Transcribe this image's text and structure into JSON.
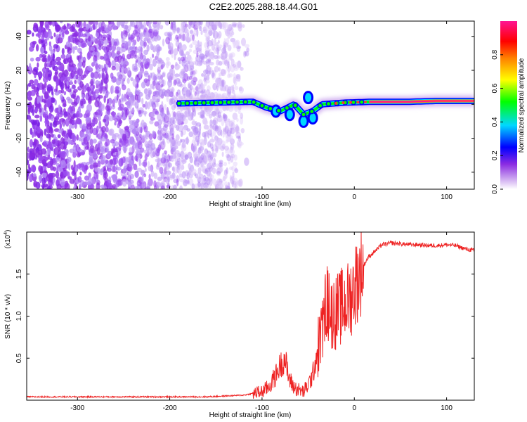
{
  "title": "C2E2.2025.288.18.44.G01",
  "chart_data": [
    {
      "type": "heatmap",
      "xlabel": "Height of straight line (km)",
      "ylabel": "Frequency (Hz)",
      "xlim": [
        -355,
        130
      ],
      "ylim": [
        -50,
        49
      ],
      "xticks": [
        -300,
        -200,
        -100,
        0,
        100
      ],
      "yticks": [
        -40,
        -20,
        0,
        20,
        40
      ],
      "noise_region_x": [
        -355,
        -130
      ],
      "signal_track": [
        {
          "x": -192,
          "f": 0.5
        },
        {
          "x": -150,
          "f": 1
        },
        {
          "x": -110,
          "f": 1.5
        },
        {
          "x": -95,
          "f": -2
        },
        {
          "x": -80,
          "f": -4
        },
        {
          "x": -65,
          "f": 0
        },
        {
          "x": -55,
          "f": -6
        },
        {
          "x": -45,
          "f": -4
        },
        {
          "x": -35,
          "f": 0
        },
        {
          "x": -10,
          "f": 1
        },
        {
          "x": 20,
          "f": 1.5
        },
        {
          "x": 60,
          "f": 1.5
        },
        {
          "x": 90,
          "f": 2
        },
        {
          "x": 130,
          "f": 2
        }
      ],
      "colorbar": {
        "label": "Normalized spectral amplitude",
        "range": [
          0,
          1
        ],
        "ticks": [
          0.0,
          0.2,
          0.4,
          0.6,
          0.8
        ],
        "colors": [
          "#ffffff",
          "#d6b8f2",
          "#8a2be2",
          "#0000ff",
          "#00d8ff",
          "#00ff00",
          "#ffff00",
          "#ff8000",
          "#ff0000",
          "#ff1493"
        ]
      }
    },
    {
      "type": "line",
      "xlabel": "Height of straight line (km)",
      "ylabel": "SNR (10 * v/v)",
      "exponent_label": "(x10",
      "exponent_power": "4",
      "exponent_close": ")",
      "xlim": [
        -355,
        130
      ],
      "ylim": [
        0,
        2.0
      ],
      "xticks": [
        -300,
        -200,
        -100,
        0,
        100
      ],
      "yticks": [
        0.5,
        1.0,
        1.5
      ],
      "ytick_labels": [
        "0.5",
        "1.0",
        "1.5"
      ],
      "color": "#ee2222",
      "series": [
        {
          "x": [
            -355,
            -300,
            -250,
            -200,
            -160,
            -140,
            -120,
            -100,
            -95,
            -90,
            -85,
            -80,
            -75,
            -72,
            -68,
            -65,
            -60,
            -55,
            -50,
            -45,
            -40,
            -35,
            -32,
            -30,
            -28,
            -25,
            -20,
            -15,
            -10,
            -5,
            0,
            5,
            10,
            15,
            20,
            25,
            30,
            40,
            50,
            60,
            70,
            80,
            90,
            100,
            110,
            120,
            130
          ],
          "y": [
            0.04,
            0.04,
            0.04,
            0.04,
            0.04,
            0.05,
            0.06,
            0.1,
            0.14,
            0.2,
            0.3,
            0.42,
            0.5,
            0.3,
            0.2,
            0.15,
            0.12,
            0.1,
            0.18,
            0.3,
            0.6,
            0.8,
            1.0,
            1.2,
            1.1,
            1.05,
            1.05,
            1.1,
            1.15,
            1.2,
            1.35,
            1.5,
            1.6,
            1.7,
            1.75,
            1.8,
            1.85,
            1.87,
            1.86,
            1.85,
            1.85,
            1.84,
            1.84,
            1.85,
            1.84,
            1.8,
            1.78
          ]
        }
      ]
    }
  ]
}
